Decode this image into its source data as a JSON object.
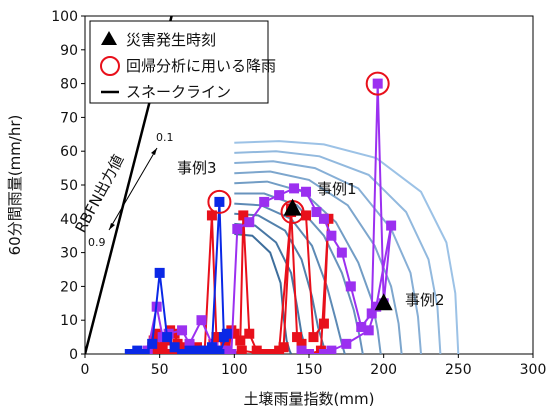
{
  "chart_data": {
    "type": "line",
    "xlabel": "土壌雨量指数(mm)",
    "ylabel": "60分間雨量(mm/hr)",
    "xlim": [
      0,
      300
    ],
    "ylim": [
      0,
      100
    ],
    "x_ticks": [
      "0",
      "50",
      "100",
      "150",
      "200",
      "250",
      "300"
    ],
    "y_ticks": [
      "0",
      "10",
      "20",
      "30",
      "40",
      "50",
      "60",
      "70",
      "80",
      "90",
      "100"
    ],
    "grid": false,
    "legend_position": "top-left",
    "legend": [
      {
        "marker": "triangle",
        "label": "災害発生時刻"
      },
      {
        "marker": "circle",
        "label": "回帰分析に用いる降雨"
      },
      {
        "marker": "line",
        "label": "スネークライン"
      }
    ],
    "annotations": {
      "rbfn_label": "RBFN出力値",
      "rbfn_top": "0.1",
      "rbfn_bottom": "0.9",
      "case1": "事例1",
      "case2": "事例2",
      "case3": "事例3"
    },
    "colors": {
      "case1": "#e8101b",
      "case2": "#9b30f0",
      "case3": "#0a28e6",
      "snake": "#000000",
      "contour_light": "#9cc2e6",
      "contour_dark": "#3e6e9c",
      "circle": "#e8101b"
    },
    "critical_line": {
      "x": [
        0,
        58
      ],
      "y": [
        0,
        100
      ]
    },
    "contours": [
      {
        "level": "0.1",
        "points": [
          [
            100,
            62.5
          ],
          [
            130,
            63
          ],
          [
            160,
            62
          ],
          [
            195,
            58
          ],
          [
            225,
            48
          ],
          [
            242,
            33
          ],
          [
            248,
            18
          ],
          [
            250,
            0
          ]
        ]
      },
      {
        "level": "",
        "points": [
          [
            100,
            59.5
          ],
          [
            128,
            60
          ],
          [
            157,
            58.5
          ],
          [
            190,
            53
          ],
          [
            215,
            42
          ],
          [
            230,
            28
          ],
          [
            236,
            14
          ],
          [
            238,
            0
          ]
        ]
      },
      {
        "level": "",
        "points": [
          [
            100,
            56.5
          ],
          [
            126,
            57
          ],
          [
            154,
            55
          ],
          [
            183,
            49
          ],
          [
            205,
            37
          ],
          [
            218,
            24
          ],
          [
            223,
            11
          ],
          [
            225,
            0
          ]
        ]
      },
      {
        "level": "",
        "points": [
          [
            100,
            53.5
          ],
          [
            124,
            54
          ],
          [
            150,
            51.5
          ],
          [
            176,
            44
          ],
          [
            194,
            32
          ],
          [
            205,
            20
          ],
          [
            210,
            9
          ],
          [
            212,
            0
          ]
        ]
      },
      {
        "level": "",
        "points": [
          [
            100,
            50.5
          ],
          [
            122,
            51
          ],
          [
            146,
            48
          ],
          [
            168,
            39
          ],
          [
            183,
            27
          ],
          [
            192,
            16
          ],
          [
            196,
            7
          ],
          [
            198,
            0
          ]
        ]
      },
      {
        "level": "",
        "points": [
          [
            100,
            47.5
          ],
          [
            120,
            47.5
          ],
          [
            142,
            44
          ],
          [
            160,
            35
          ],
          [
            172,
            24
          ],
          [
            180,
            13
          ],
          [
            184,
            5
          ],
          [
            186,
            0
          ]
        ]
      },
      {
        "level": "",
        "points": [
          [
            100,
            44.5
          ],
          [
            118,
            44
          ],
          [
            138,
            40
          ],
          [
            152,
            32
          ],
          [
            162,
            20
          ],
          [
            168,
            10
          ],
          [
            172,
            3
          ],
          [
            174,
            0
          ]
        ]
      },
      {
        "level": "",
        "points": [
          [
            100,
            41.5
          ],
          [
            116,
            41
          ],
          [
            134,
            36.5
          ],
          [
            145,
            28
          ],
          [
            152,
            17
          ],
          [
            156,
            8
          ],
          [
            160,
            2
          ],
          [
            162,
            0
          ]
        ]
      },
      {
        "level": "",
        "points": [
          [
            100,
            38.5
          ],
          [
            114,
            38
          ],
          [
            128,
            33
          ],
          [
            138,
            24
          ],
          [
            142,
            14
          ],
          [
            145,
            6
          ],
          [
            148,
            1
          ],
          [
            150,
            0
          ]
        ]
      },
      {
        "level": "0.9",
        "points": [
          [
            100,
            35.5
          ],
          [
            112,
            35
          ],
          [
            124,
            30
          ],
          [
            131,
            21
          ],
          [
            133,
            11
          ],
          [
            135,
            4
          ],
          [
            137,
            1
          ],
          [
            138,
            0
          ]
        ]
      }
    ],
    "series": [
      {
        "name": "事例1",
        "color": "#e8101b",
        "x": [
          42,
          44,
          45,
          46,
          48,
          50,
          52,
          55,
          57,
          60,
          62,
          65,
          68,
          72,
          75,
          78,
          82,
          86,
          90,
          93,
          96,
          98,
          100,
          104,
          106,
          110,
          115,
          120,
          125,
          130,
          138,
          148,
          153,
          160,
          163,
          158,
          150,
          145,
          142,
          138,
          133,
          120,
          105,
          98,
          94,
          88,
          85,
          80,
          75,
          70,
          66,
          62,
          58,
          54,
          51,
          48,
          46,
          44,
          42
        ],
        "y": [
          0,
          1,
          2,
          4,
          6,
          5,
          2,
          4,
          7,
          6,
          3,
          0,
          1,
          0,
          2,
          1,
          0,
          3,
          5,
          1,
          0,
          7,
          6,
          4,
          41,
          6,
          1,
          0,
          0,
          1,
          42,
          41,
          5,
          9,
          40,
          1,
          0,
          3,
          5,
          43,
          2,
          0,
          1,
          0,
          4,
          5,
          41,
          0,
          1,
          0,
          2,
          1,
          0,
          0,
          2,
          1,
          0,
          0,
          0
        ]
      },
      {
        "name": "事例2",
        "color": "#9b30f0",
        "x": [
          42,
          48,
          52,
          56,
          65,
          70,
          78,
          86,
          95,
          98,
          102,
          110,
          120,
          130,
          140,
          148,
          155,
          160,
          165,
          172,
          178,
          185,
          192,
          196,
          200,
          205,
          195,
          190,
          175,
          165,
          160,
          150,
          145
        ],
        "y": [
          1,
          14,
          5,
          6,
          7,
          3,
          10,
          2,
          1,
          0,
          37,
          39,
          45,
          47,
          49,
          48,
          42,
          40,
          35,
          30,
          20,
          8,
          12,
          80,
          15,
          38,
          14,
          7,
          3,
          1,
          0,
          0,
          1
        ]
      },
      {
        "name": "事例3",
        "color": "#0a28e6",
        "x": [
          30,
          35,
          40,
          45,
          50,
          55,
          60,
          65,
          70,
          75,
          80,
          85,
          90,
          93,
          95,
          90,
          88,
          84,
          80,
          76,
          72
        ],
        "y": [
          0,
          1,
          0,
          3,
          24,
          5,
          2,
          0,
          1,
          0,
          1,
          2,
          45,
          5,
          6,
          0,
          1,
          0,
          0,
          1,
          0
        ]
      }
    ],
    "disaster_points": [
      {
        "x": 139,
        "y": 43
      },
      {
        "x": 200,
        "y": 15
      }
    ],
    "circled_points": [
      {
        "x": 90,
        "y": 45
      },
      {
        "x": 139,
        "y": 42
      },
      {
        "x": 196,
        "y": 80
      }
    ]
  }
}
